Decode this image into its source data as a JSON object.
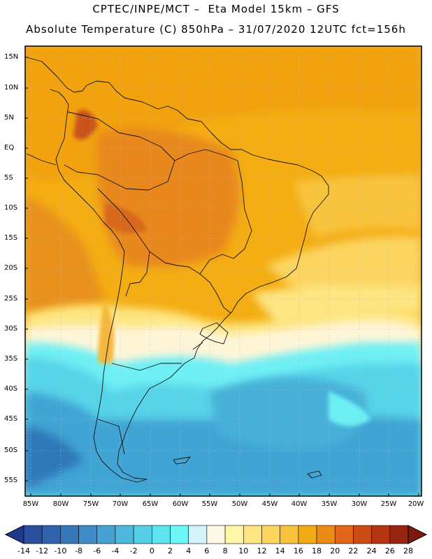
{
  "header": {
    "title_line1": "CPTEC/INPE/MCT –  Eta Model 15km – GFS",
    "title_line2": "Absolute Temperature (C) 850hPa – 31/07/2020 12UTC fct=156h"
  },
  "map": {
    "lat_labels": [
      "15N",
      "10N",
      "5N",
      "EQ",
      "5S",
      "10S",
      "15S",
      "20S",
      "25S",
      "30S",
      "35S",
      "40S",
      "45S",
      "50S",
      "55S"
    ],
    "lon_labels": [
      "85W",
      "80W",
      "75W",
      "70W",
      "65W",
      "60W",
      "55W",
      "50W",
      "45W",
      "40W",
      "35W",
      "30W",
      "25W",
      "20W"
    ]
  },
  "colorbar": {
    "labels": [
      "-14",
      "-12",
      "-10",
      "-8",
      "-6",
      "-4",
      "-2",
      "0",
      "2",
      "4",
      "6",
      "8",
      "10",
      "12",
      "14",
      "16",
      "18",
      "20",
      "22",
      "24",
      "26",
      "28"
    ],
    "colors": [
      "#1f3a8a",
      "#2a4f9c",
      "#2f63ad",
      "#3677b8",
      "#3f8cc6",
      "#47a1d2",
      "#4fb8dd",
      "#55cfe6",
      "#5ee4ee",
      "#6cf6f6",
      "#d4f4fb",
      "#fff8e4",
      "#fff6a8",
      "#fde682",
      "#fbd65e",
      "#f8c23c",
      "#f2aa14",
      "#ec8c16",
      "#e2661a",
      "#cc4c16",
      "#b53510",
      "#962410",
      "#7a1a10"
    ]
  }
}
